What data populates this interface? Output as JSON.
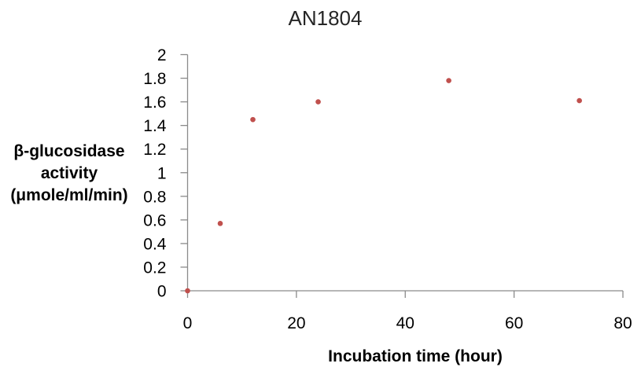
{
  "chart_data": {
    "type": "scatter",
    "title": "AN1804",
    "xlabel": "Incubation time (hour)",
    "ylabel": "β-glucosidase\nactivity\n(μmole/ml/min)",
    "xlim": [
      0,
      80
    ],
    "ylim": [
      0,
      2
    ],
    "grid": false,
    "legend": false,
    "x_ticks": {
      "values": [
        0,
        20,
        40,
        60,
        80
      ],
      "labels": [
        "0",
        "20",
        "40",
        "60",
        "80"
      ]
    },
    "y_ticks": {
      "values": [
        0,
        0.2,
        0.4,
        0.6,
        0.8,
        1,
        1.2,
        1.4,
        1.6,
        1.8,
        2
      ],
      "labels": [
        "0",
        "0.2",
        "0.4",
        "0.6",
        "0.8",
        "1",
        "1.2",
        "1.4",
        "1.6",
        "1.8",
        "2"
      ]
    },
    "series": [
      {
        "points": [
          {
            "x": 0,
            "y": 0
          },
          {
            "x": 6,
            "y": 0.57
          },
          {
            "x": 12,
            "y": 1.45
          },
          {
            "x": 24,
            "y": 1.6
          },
          {
            "x": 48,
            "y": 1.78
          },
          {
            "x": 72,
            "y": 1.61
          }
        ]
      }
    ],
    "colors": {
      "marker": "#c0504d",
      "axis": "#8a8a8a",
      "tick_text": "#000000"
    }
  }
}
